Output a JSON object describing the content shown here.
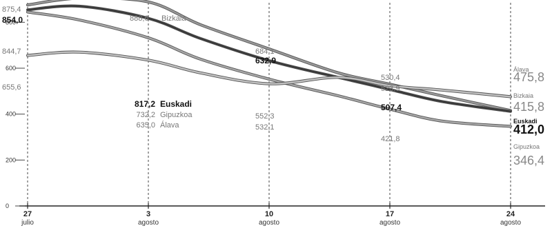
{
  "chart_data": {
    "type": "line",
    "title": "",
    "xlabel": "",
    "ylabel": "",
    "ylim": [
      0,
      900
    ],
    "yticks": [
      0,
      200,
      400,
      600,
      800
    ],
    "grid": false,
    "date_ticks": [
      {
        "x": 0,
        "label1": "27",
        "label2": "julio"
      },
      {
        "x": 7,
        "label1": "3",
        "label2": "agosto"
      },
      {
        "x": 14,
        "label1": "10",
        "label2": "agosto"
      },
      {
        "x": 21,
        "label1": "17",
        "label2": "agosto"
      },
      {
        "x": 28,
        "label1": "24",
        "label2": "agosto"
      }
    ],
    "series": [
      {
        "name": "Bizkaia",
        "color": "#9a9a9a",
        "end_value": "415,8",
        "x": [
          0,
          3,
          7,
          10,
          14,
          18,
          21,
          24,
          28
        ],
        "y": [
          875.4,
          905,
          888.6,
          790,
          684.1,
          580,
          530.4,
          480,
          415.8
        ]
      },
      {
        "name": "Euskadi",
        "color": "#3a3a3a",
        "end_value": "412,0",
        "x": [
          0,
          3,
          7,
          10,
          14,
          18,
          21,
          24,
          28
        ],
        "y": [
          854.0,
          870,
          817.2,
          730,
          632.9,
          560,
          507.4,
          455,
          412.0
        ]
      },
      {
        "name": "Gipuzkoa",
        "color": "#a8a8a8",
        "end_value": "346,4",
        "x": [
          0,
          3,
          7,
          10,
          14,
          18,
          21,
          24,
          28
        ],
        "y": [
          844.7,
          810,
          732.2,
          640,
          552.3,
          480,
          421.8,
          370,
          346.4
        ]
      },
      {
        "name": "Álava",
        "color": "#c2c2c2",
        "end_value": "475,8",
        "x": [
          0,
          3,
          7,
          10,
          14,
          18,
          21,
          24,
          28
        ],
        "y": [
          655.6,
          670,
          635.0,
          580,
          532.1,
          560,
          523.9,
          505,
          475.8
        ]
      }
    ],
    "value_labels": [
      {
        "x": 0,
        "text": "875,4",
        "emph": false
      },
      {
        "x": 0,
        "text": "854,0",
        "emph": true
      },
      {
        "x": 0,
        "text": "844,7",
        "emph": false
      },
      {
        "x": 0,
        "text": "655,6",
        "emph": false
      },
      {
        "x": 7,
        "text": "888,6",
        "emph": false
      },
      {
        "x": 14,
        "text": "684,1",
        "emph": false
      },
      {
        "x": 14,
        "text": "632,9",
        "emph": true
      },
      {
        "x": 14,
        "text": "552,3",
        "emph": false
      },
      {
        "x": 14,
        "text": "532,1",
        "emph": false
      },
      {
        "x": 21,
        "text": "530,4",
        "emph": false
      },
      {
        "x": 21,
        "text": "523,9",
        "emph": false
      },
      {
        "x": 21,
        "text": "507,4",
        "emph": true
      },
      {
        "x": 21,
        "text": "421,8",
        "emph": false
      }
    ],
    "legend_block": [
      {
        "value": "817,2",
        "name": "Euskadi",
        "emph": true
      },
      {
        "value": "732,2",
        "name": "Gipuzkoa",
        "emph": false
      },
      {
        "value": "635,0",
        "name": "Álava",
        "emph": false
      }
    ],
    "series_label_bizkaia": "Bizkaia",
    "end_labels": [
      {
        "name": "Álava",
        "value": "475,8",
        "emph": false
      },
      {
        "name": "Bizkaia",
        "value": "415,8",
        "emph": false
      },
      {
        "name": "Euskadi",
        "value": "412,0",
        "emph": true
      },
      {
        "name": "Gipuzkoa",
        "value": "346,4",
        "emph": false
      }
    ]
  }
}
